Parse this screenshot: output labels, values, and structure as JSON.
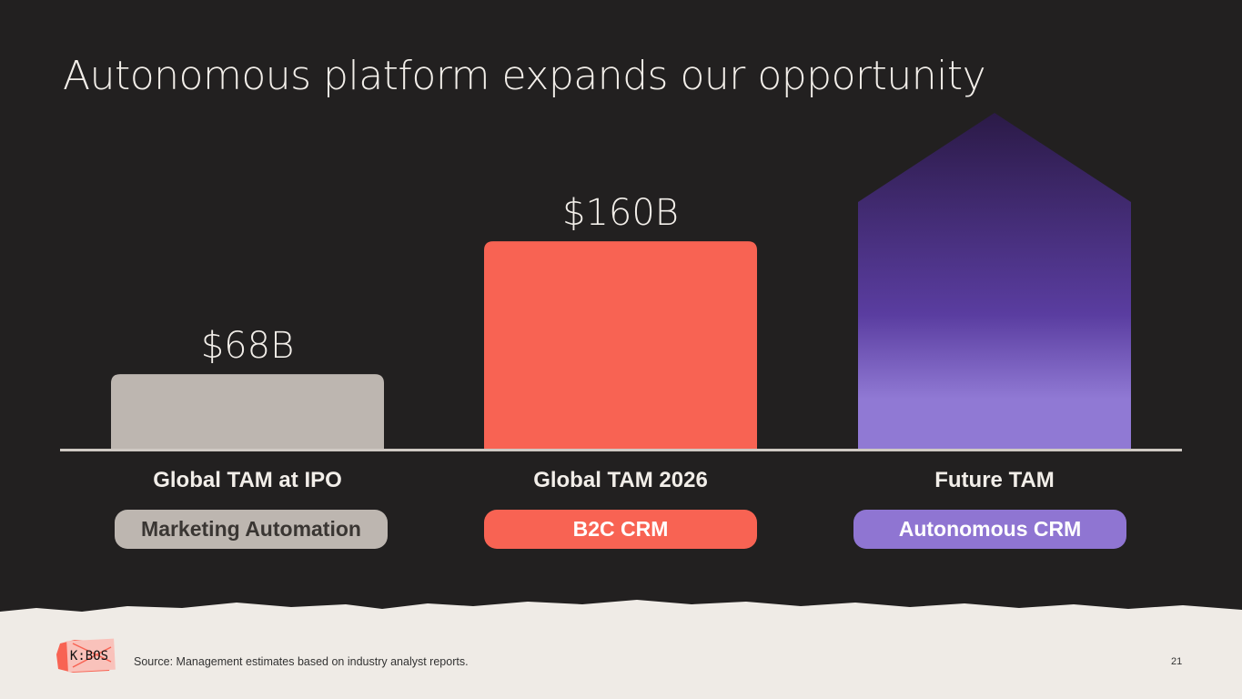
{
  "title": "Autonomous platform expands our opportunity",
  "chart_data": {
    "type": "bar",
    "title": "",
    "categories": [
      "Global TAM at IPO",
      "Global TAM 2026",
      "Future TAM"
    ],
    "values": [
      68,
      160,
      null
    ],
    "data_labels": [
      "$68B",
      "$160B",
      ""
    ],
    "tags": [
      "Marketing Automation",
      "B2C CRM",
      "Autonomous CRM"
    ],
    "colors": [
      "#bdb6b0",
      "#f86353",
      "#8f75d2"
    ],
    "tag_text_colors": [
      "#3a3633",
      "#ffffff",
      "#ffffff"
    ],
    "future_gradient": [
      "#2b1a47",
      "#5a3da0",
      "#9079d4"
    ],
    "grid": false
  },
  "footer": {
    "source": "Source: Management estimates based on industry analyst reports.",
    "page_number": "21",
    "logo_text": "K:BOS"
  }
}
